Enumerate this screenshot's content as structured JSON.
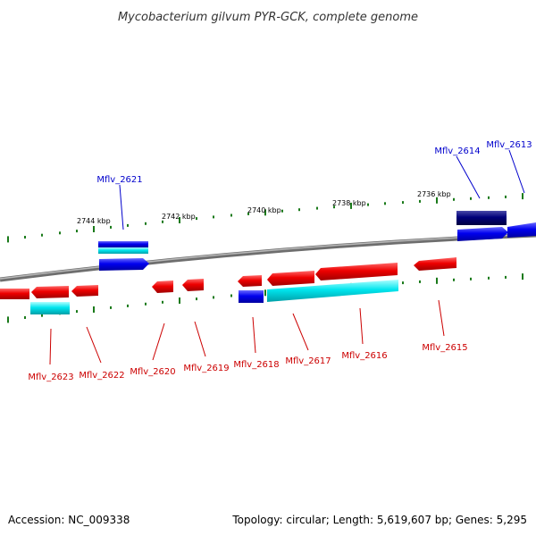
{
  "title": "Mycobacterium gilvum PYR-GCK, complete genome",
  "scale_labels": [
    "2744 kbp",
    "2742 kbp",
    "2740 kbp",
    "2738 kbp",
    "2736 kbp"
  ],
  "genes_top": [
    "Mflv_2621",
    "Mflv_2614",
    "Mflv_2613"
  ],
  "genes_bottom": [
    "Mflv_2623",
    "Mflv_2622",
    "Mflv_2620",
    "Mflv_2619",
    "Mflv_2618",
    "Mflv_2617",
    "Mflv_2616",
    "Mflv_2615"
  ],
  "footer": {
    "accession": "Accession: NC_009338",
    "topology": "Topology: circular; Length: 5,619,607 bp; Genes: 5,295"
  },
  "colors": {
    "forward_gene": "#0000ee",
    "reverse_gene": "#ee0000",
    "cds_box": "#00e5ee",
    "dark_gene": "#00007a",
    "ticks": "#1a7a1a",
    "label_blue": "#0000cc",
    "label_red": "#cc0000",
    "backbone": "#808080"
  }
}
